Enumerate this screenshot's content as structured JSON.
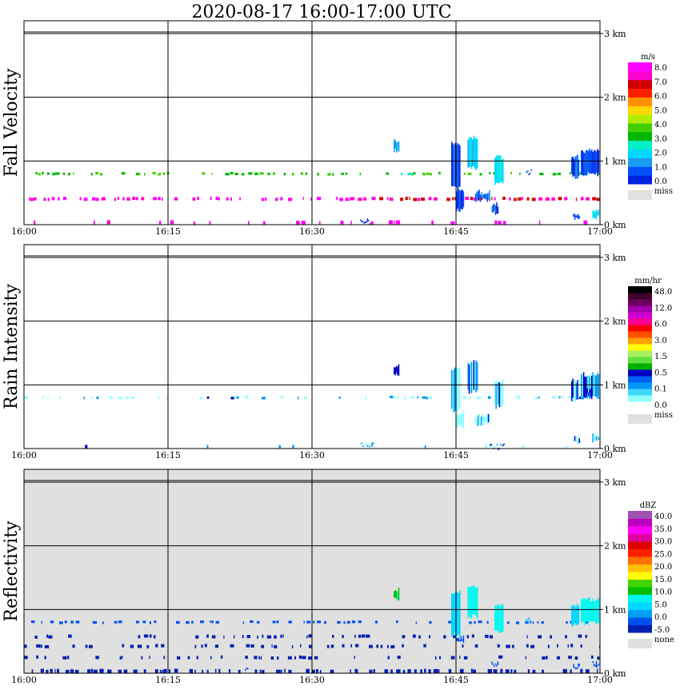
{
  "title": "2020-08-17   16:00-17:00 UTC",
  "x_ticks": [
    "16:00",
    "16:15",
    "16:30",
    "16:45",
    "17:00"
  ],
  "y_ticks": [
    "0 km",
    "1 km",
    "2 km",
    "3 km"
  ],
  "colors": {
    "fall_velocity_scale": [
      "#0020e0",
      "#0050ff",
      "#1a9cf0",
      "#00d8ff",
      "#00f0c8",
      "#00b800",
      "#40d000",
      "#b0ec00",
      "#ffd800",
      "#ff9000",
      "#ff2000",
      "#d00000",
      "#ff00d0",
      "#ff00ff"
    ],
    "rain_intensity_scale": [
      "#ffffff",
      "#90ffff",
      "#40d8f8",
      "#0098f8",
      "#0060f0",
      "#0000c0",
      "#00b000",
      "#60e040",
      "#a8f060",
      "#ffff00",
      "#ffa000",
      "#ff5000",
      "#ff0000",
      "#ff0090",
      "#d000d0",
      "#a000b0",
      "#700060",
      "#400030",
      "#000000"
    ],
    "reflectivity_scale": [
      "#0020b0",
      "#0050f0",
      "#00a0f8",
      "#00d8ff",
      "#00f8f0",
      "#00c000",
      "#40d800",
      "#ffff00",
      "#ffc000",
      "#ff7000",
      "#ff2000",
      "#e00000",
      "#e000a0",
      "#ff00ff",
      "#c000c0",
      "#a050b0"
    ],
    "missing": "#e0e0e0"
  },
  "chart_data": [
    {
      "type": "heatmap",
      "ylabel": "Fall Velocity",
      "legend_unit": "m/s",
      "legend_labels": [
        "8.0",
        "7.0",
        "6.0",
        "5.0",
        "4.0",
        "3.0",
        "2.0",
        "1.0",
        "0.0"
      ],
      "missing_label": "miss",
      "x_range": [
        "16:00",
        "17:00"
      ],
      "y_range_km": [
        0,
        3.2
      ],
      "background": "none",
      "grid": true,
      "bands": [
        {
          "t0": 0.0,
          "t1": 60.0,
          "z0": 0.78,
          "z1": 0.82,
          "value": 3.5,
          "density": 0.45
        },
        {
          "t0": 0.5,
          "t1": 34.0,
          "z0": 0.38,
          "z1": 0.43,
          "value": 8.0,
          "density": 0.62
        },
        {
          "t0": 34.0,
          "t1": 60.0,
          "z0": 0.38,
          "z1": 0.43,
          "value": 7.2,
          "density": 0.9
        },
        {
          "t0": 0.0,
          "t1": 60.0,
          "z0": 0.0,
          "z1": 0.06,
          "value": 8.0,
          "density": 0.12
        }
      ],
      "cells": [
        {
          "t0": 38.5,
          "t1": 39.0,
          "z0": 1.13,
          "z1": 1.35,
          "value": 1.5
        },
        {
          "t0": 44.5,
          "t1": 45.4,
          "z0": 0.55,
          "z1": 1.3,
          "value": 0.7
        },
        {
          "t0": 45.0,
          "t1": 45.8,
          "z0": 0.2,
          "z1": 0.6,
          "value": 0.5
        },
        {
          "t0": 46.2,
          "t1": 47.2,
          "z0": 0.85,
          "z1": 1.4,
          "value": 2.0
        },
        {
          "t0": 47.0,
          "t1": 48.5,
          "z0": 0.35,
          "z1": 0.55,
          "value": 1.2
        },
        {
          "t0": 48.7,
          "t1": 49.3,
          "z0": 0.15,
          "z1": 0.35,
          "value": 0.8
        },
        {
          "t0": 49.0,
          "t1": 49.9,
          "z0": 0.62,
          "z1": 1.1,
          "value": 2.2
        },
        {
          "t0": 52.3,
          "t1": 52.8,
          "z0": 0.8,
          "z1": 0.88,
          "value": 0.6
        },
        {
          "t0": 57.0,
          "t1": 57.8,
          "z0": 0.72,
          "z1": 1.1,
          "value": 1.0
        },
        {
          "t0": 58.0,
          "t1": 59.8,
          "z0": 0.75,
          "z1": 1.2,
          "value": 0.6
        },
        {
          "t0": 57.2,
          "t1": 57.8,
          "z0": 0.05,
          "z1": 0.2,
          "value": 0.7
        },
        {
          "t0": 59.2,
          "t1": 59.8,
          "z0": 0.08,
          "z1": 0.25,
          "value": 2.5
        },
        {
          "t0": 35.0,
          "t1": 36.0,
          "z0": 0.02,
          "z1": 0.1,
          "value": 0.6
        }
      ]
    },
    {
      "type": "heatmap",
      "ylabel": "Rain Intensity",
      "legend_unit": "mm/hr",
      "legend_labels": [
        "48.0",
        "12.0",
        "6.0",
        "3.0",
        "1.5",
        "0.5",
        "0.1",
        "0.0"
      ],
      "missing_label": "miss",
      "x_range": [
        "16:00",
        "17:00"
      ],
      "y_range_km": [
        0,
        3.2
      ],
      "background": "none",
      "grid": true,
      "bands": [
        {
          "t0": 0.0,
          "t1": 60.0,
          "z0": 0.78,
          "z1": 0.82,
          "value": 0.05,
          "density": 0.35
        },
        {
          "t0": 0.0,
          "t1": 60.0,
          "z0": 0.0,
          "z1": 0.05,
          "value": 0.05,
          "density": 0.1
        }
      ],
      "cells": [
        {
          "t0": 38.5,
          "t1": 39.0,
          "z0": 1.13,
          "z1": 1.35,
          "value": 0.8
        },
        {
          "t0": 44.5,
          "t1": 45.4,
          "z0": 0.55,
          "z1": 1.3,
          "value": 0.1
        },
        {
          "t0": 45.0,
          "t1": 45.8,
          "z0": 0.3,
          "z1": 0.6,
          "value": 0.05
        },
        {
          "t0": 46.2,
          "t1": 47.2,
          "z0": 0.85,
          "z1": 1.4,
          "value": 0.2
        },
        {
          "t0": 47.0,
          "t1": 48.5,
          "z0": 0.35,
          "z1": 0.55,
          "value": 0.1
        },
        {
          "t0": 49.0,
          "t1": 49.9,
          "z0": 0.62,
          "z1": 1.1,
          "value": 0.1
        },
        {
          "t0": 57.0,
          "t1": 57.8,
          "z0": 0.72,
          "z1": 1.1,
          "value": 0.1
        },
        {
          "t0": 58.0,
          "t1": 59.8,
          "z0": 0.75,
          "z1": 1.2,
          "value": 0.3
        },
        {
          "t0": 58.5,
          "t1": 59.2,
          "z0": 0.8,
          "z1": 0.95,
          "value": 1.0
        },
        {
          "t0": 57.2,
          "t1": 57.8,
          "z0": 0.05,
          "z1": 0.2,
          "value": 0.05
        },
        {
          "t0": 59.2,
          "t1": 59.8,
          "z0": 0.08,
          "z1": 0.25,
          "value": 0.05
        },
        {
          "t0": 35.0,
          "t1": 36.5,
          "z0": 0.02,
          "z1": 0.1,
          "value": 0.05
        },
        {
          "t0": 48.5,
          "t1": 50.0,
          "z0": 0.02,
          "z1": 0.08,
          "value": 0.05
        }
      ]
    },
    {
      "type": "heatmap",
      "ylabel": "Reflectivity",
      "legend_unit": "dBZ",
      "legend_labels": [
        "40.0",
        "35.0",
        "30.0",
        "25.0",
        "20.0",
        "15.0",
        "10.0",
        "5.0",
        "0.0",
        "-5.0"
      ],
      "missing_label": "none",
      "x_range": [
        "16:00",
        "17:00"
      ],
      "y_range_km": [
        0,
        3.2
      ],
      "background": "missing",
      "grid": true,
      "bands": [
        {
          "t0": 0.0,
          "t1": 60.0,
          "z0": 0.78,
          "z1": 0.82,
          "value": -3,
          "density": 0.5
        },
        {
          "t0": 0.0,
          "t1": 60.0,
          "z0": 0.55,
          "z1": 0.6,
          "value": -8,
          "density": 0.3
        },
        {
          "t0": 0.0,
          "t1": 60.0,
          "z0": 0.4,
          "z1": 0.45,
          "value": -8,
          "density": 0.45
        },
        {
          "t0": 0.0,
          "t1": 60.0,
          "z0": 0.22,
          "z1": 0.27,
          "value": -8,
          "density": 0.35
        },
        {
          "t0": 0.0,
          "t1": 60.0,
          "z0": 0.0,
          "z1": 0.06,
          "value": -8,
          "density": 0.6
        }
      ],
      "cells": [
        {
          "t0": 38.5,
          "t1": 39.0,
          "z0": 1.13,
          "z1": 1.35,
          "value": 8
        },
        {
          "t0": 44.5,
          "t1": 45.4,
          "z0": 0.55,
          "z1": 1.3,
          "value": 3
        },
        {
          "t0": 45.0,
          "t1": 45.8,
          "z0": 0.45,
          "z1": 0.6,
          "value": -3
        },
        {
          "t0": 46.2,
          "t1": 47.2,
          "z0": 0.85,
          "z1": 1.4,
          "value": 6
        },
        {
          "t0": 49.0,
          "t1": 49.9,
          "z0": 0.62,
          "z1": 1.1,
          "value": 5
        },
        {
          "t0": 57.0,
          "t1": 57.8,
          "z0": 0.72,
          "z1": 1.1,
          "value": 2
        },
        {
          "t0": 58.0,
          "t1": 59.8,
          "z0": 0.75,
          "z1": 1.2,
          "value": 7
        },
        {
          "t0": 52.3,
          "t1": 52.8,
          "z0": 0.8,
          "z1": 0.88,
          "value": 1
        },
        {
          "t0": 48.7,
          "t1": 49.3,
          "z0": 0.1,
          "z1": 0.2,
          "value": -3
        },
        {
          "t0": 59.2,
          "t1": 59.8,
          "z0": 0.08,
          "z1": 0.2,
          "value": -3
        },
        {
          "t0": 57.2,
          "t1": 57.8,
          "z0": 0.05,
          "z1": 0.15,
          "value": -3
        },
        {
          "t0": 23.0,
          "t1": 23.3,
          "z0": 0.08,
          "z1": 0.14,
          "value": -3
        }
      ]
    }
  ]
}
